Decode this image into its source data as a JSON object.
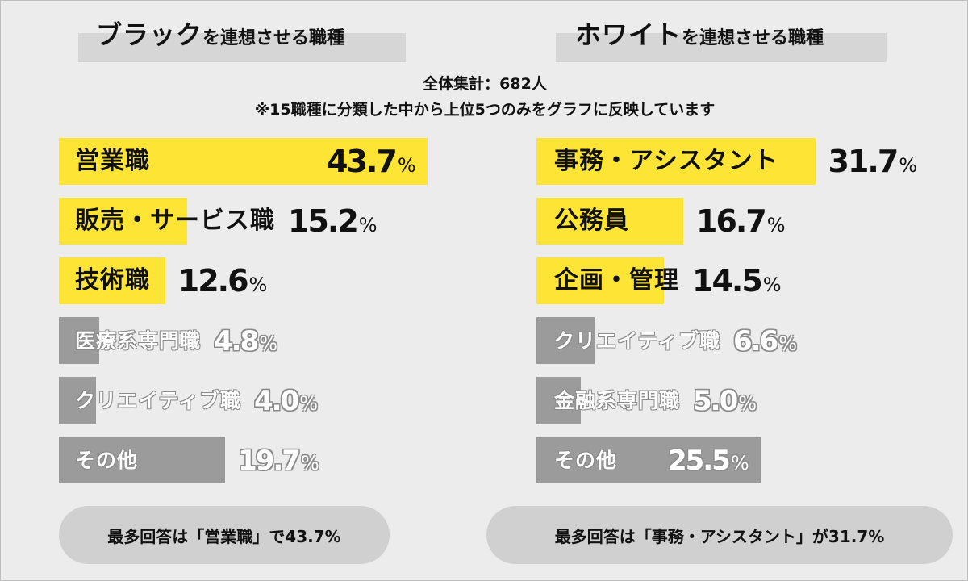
{
  "summary": {
    "total": "全体集計：682人",
    "note": "※15職種に分類した中から上位5つのみをグラフに反映しています"
  },
  "colors": {
    "highlight": "#fde435",
    "muted": "#9b9b9b",
    "pill": "#d0d0d0"
  },
  "chart_data": [
    {
      "type": "bar",
      "orientation": "horizontal",
      "title_big": "ブラック",
      "title_small": "を連想させる職種",
      "unit": "%",
      "categories": [
        "営業職",
        "販売・サービス職",
        "技術職",
        "医療系専門職",
        "クリエイティブ職",
        "その他"
      ],
      "values": [
        43.7,
        15.2,
        12.6,
        4.8,
        4.0,
        19.7
      ],
      "labels": [
        "43.7",
        "15.2",
        "12.6",
        "4.8",
        "4.0",
        "19.7"
      ],
      "highlighted_count": 3,
      "footnote": "最多回答は「営業職」で43.7%"
    },
    {
      "type": "bar",
      "orientation": "horizontal",
      "title_big": "ホワイト",
      "title_small": "を連想させる職種",
      "unit": "%",
      "categories": [
        "事務・アシスタント",
        "公務員",
        "企画・管理",
        "クリエイティブ職",
        "金融系専門職",
        "その他"
      ],
      "values": [
        31.7,
        16.7,
        14.5,
        6.6,
        5.0,
        25.5
      ],
      "labels": [
        "31.7",
        "16.7",
        "14.5",
        "6.6",
        "5.0",
        "25.5"
      ],
      "highlighted_count": 3,
      "footnote": "最多回答は「事務・アシスタント」が31.7%"
    }
  ]
}
